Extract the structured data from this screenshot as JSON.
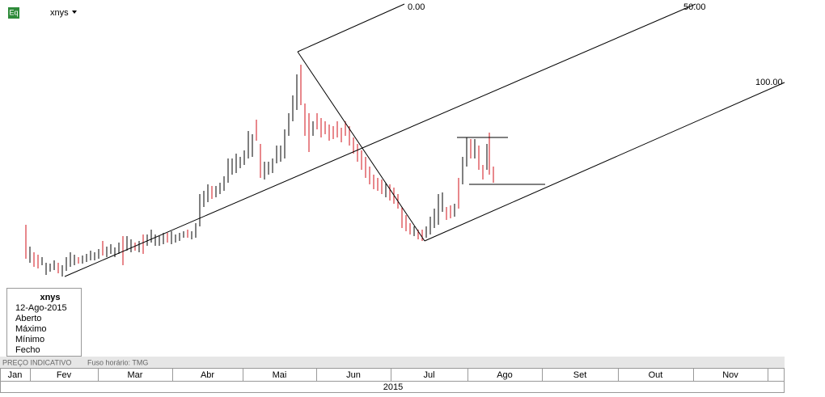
{
  "header": {
    "icon": "Eq",
    "symbol": "xnys"
  },
  "fib_levels": [
    "0.00",
    "50.00",
    "100.00"
  ],
  "info_box": {
    "title": "xnys",
    "date": "12-Ago-2015",
    "rows": [
      "Aberto",
      "Máximo",
      "Mínimo",
      "Fecho"
    ]
  },
  "status_bar": [
    "PREÇO INDICATIVO",
    "Fuso horário: TMG"
  ],
  "time_axis": {
    "months": [
      "Jan",
      "Fev",
      "Mar",
      "Abr",
      "Mai",
      "Jun",
      "Jul",
      "Ago",
      "Set",
      "Out",
      "Nov"
    ],
    "year": "2015"
  }
}
